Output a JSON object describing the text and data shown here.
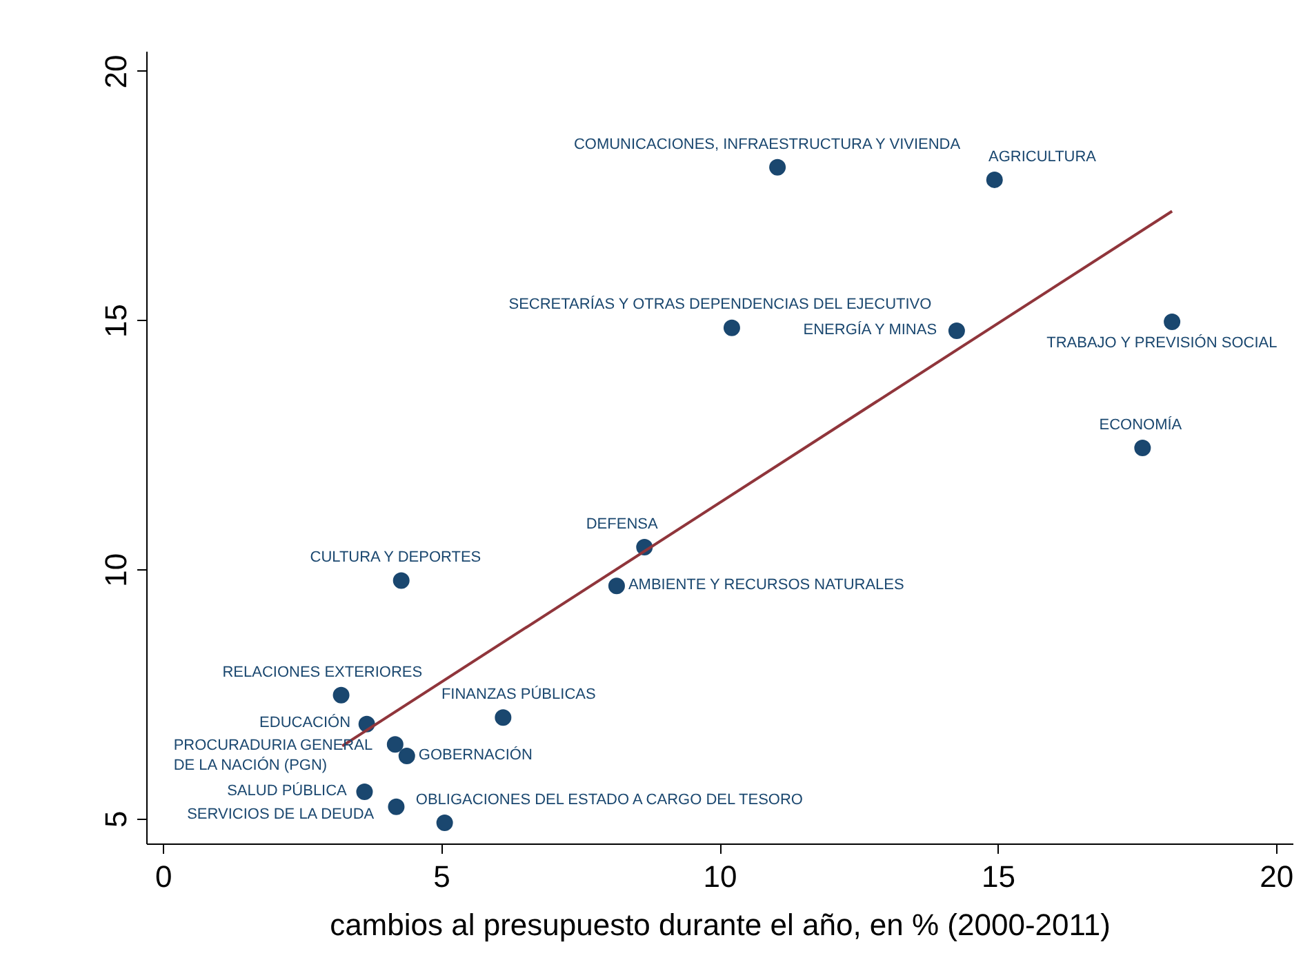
{
  "chart_data": {
    "type": "scatter",
    "xlabel": "cambios al presupuesto durante el año, en % (2000-2011)",
    "xlim": [
      -0.3,
      20.3
    ],
    "ylim": [
      4.5,
      20.4
    ],
    "xticks": [
      0,
      5,
      10,
      15,
      20
    ],
    "yticks": [
      5,
      10,
      15,
      20
    ],
    "grid": false,
    "series": [
      {
        "color": "#1a476f",
        "marker": "circle",
        "x": [
          11.03,
          14.93,
          10.21,
          14.25,
          18.12,
          17.59,
          8.64,
          4.27,
          8.14,
          3.19,
          6.1,
          3.65,
          4.16,
          4.37,
          3.61,
          4.18,
          5.05
        ],
        "values": [
          18.08,
          17.83,
          14.86,
          14.8,
          14.98,
          12.45,
          10.46,
          9.79,
          9.68,
          7.49,
          7.04,
          6.91,
          6.5,
          6.27,
          5.55,
          5.25,
          4.93
        ],
        "value_labels": [
          "COMUNICACIONES, INFRAESTRUCTURA Y VIVIENDA",
          "AGRICULTURA",
          "SECRETARÍAS Y OTRAS DEPENDENCIAS DEL EJECUTIVO",
          "ENERGÍA Y MINAS",
          "TRABAJO Y PREVISIÓN SOCIAL",
          "ECONOMÍA",
          "DEFENSA",
          "CULTURA Y DEPORTES",
          "AMBIENTE Y RECURSOS NATURALES",
          "RELACIONES EXTERIORES",
          "FINANZAS PÚBLICAS",
          "EDUCACIÓN",
          "PROCURADURIA GENERAL DE LA NACIÓN (PGN)",
          "GOBERNACIÓN",
          "SALUD PÚBLICA",
          "SERVICIOS DE LA DEUDA",
          "OBLIGACIONES DEL ESTADO A CARGO DEL TESORO"
        ]
      },
      {
        "type": "line",
        "color": "#90353b",
        "marker": "none",
        "x": [
          3.21,
          18.12
        ],
        "values": [
          6.47,
          17.2
        ]
      }
    ]
  }
}
